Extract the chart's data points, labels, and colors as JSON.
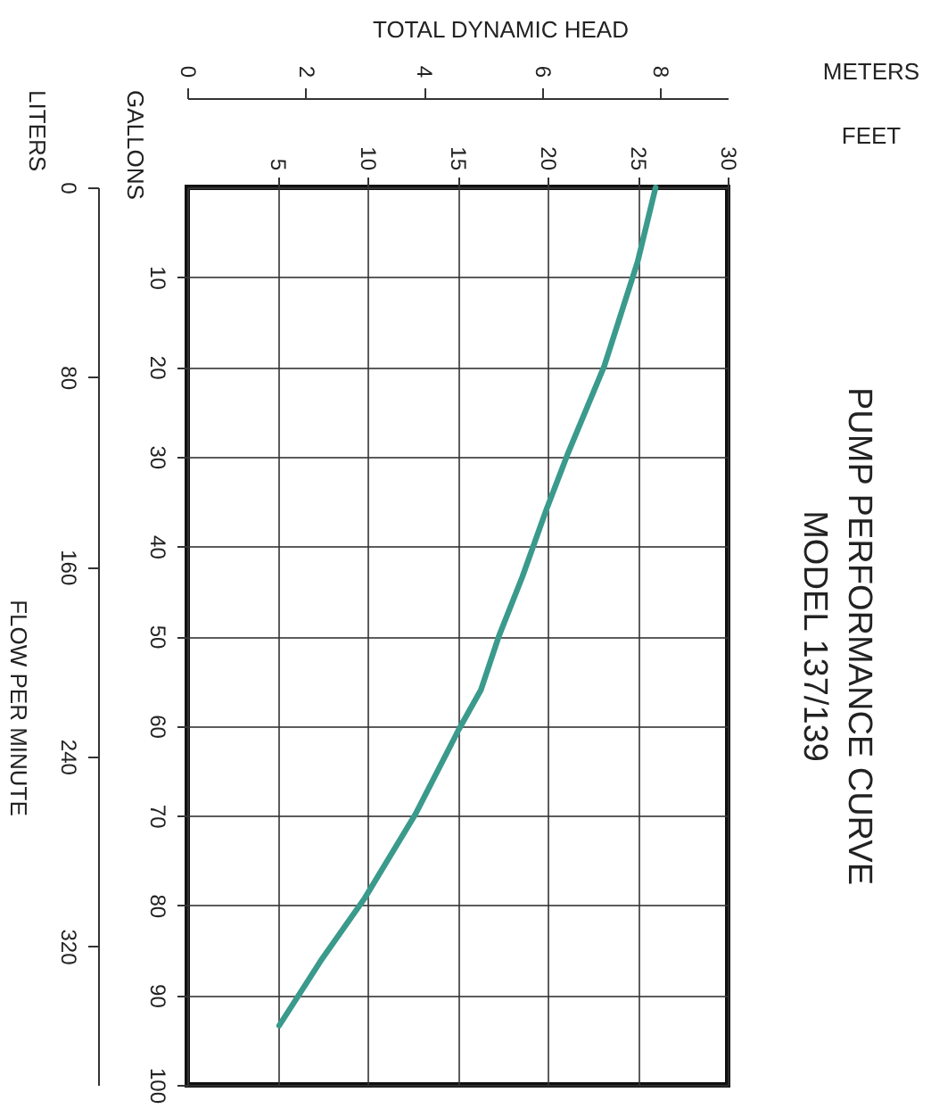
{
  "chart_data": {
    "type": "line",
    "title": "PUMP PERFORMANCE CURVE",
    "subtitle": "MODEL 137/139",
    "xlabel": "FEET",
    "x2label": "METERS",
    "ylabel": "GALLONS",
    "y2label": "LITERS",
    "annotations": [
      "TOTAL DYNAMIC HEAD",
      "FLOW PER MINUTE"
    ],
    "x": [
      26.0,
      25.0,
      23.15,
      21.1,
      19.9,
      18.6,
      17.3,
      16.3,
      15.1,
      12.65,
      9.85,
      7.4,
      5.1
    ],
    "series": [
      {
        "color": "#3a9a8c",
        "values": [
          0,
          8.3,
          19.9,
          29.8,
          36.1,
          43.4,
          50.0,
          56.0,
          60.3,
          69.9,
          79.2,
          86.2,
          93.4
        ]
      }
    ],
    "xlim": [
      0,
      30
    ],
    "xticks": [
      5,
      10,
      15,
      20,
      25,
      30
    ],
    "x2lim": [
      0,
      9.14
    ],
    "x2ticks": [
      0,
      2,
      4,
      6,
      8
    ],
    "ylim": [
      100,
      0
    ],
    "yticks": [
      10,
      20,
      30,
      40,
      50,
      60,
      70,
      80,
      90,
      100
    ],
    "y2lim": [
      378.5,
      0
    ],
    "y2ticks": [
      0,
      80,
      160,
      240,
      320
    ],
    "grid": true
  }
}
